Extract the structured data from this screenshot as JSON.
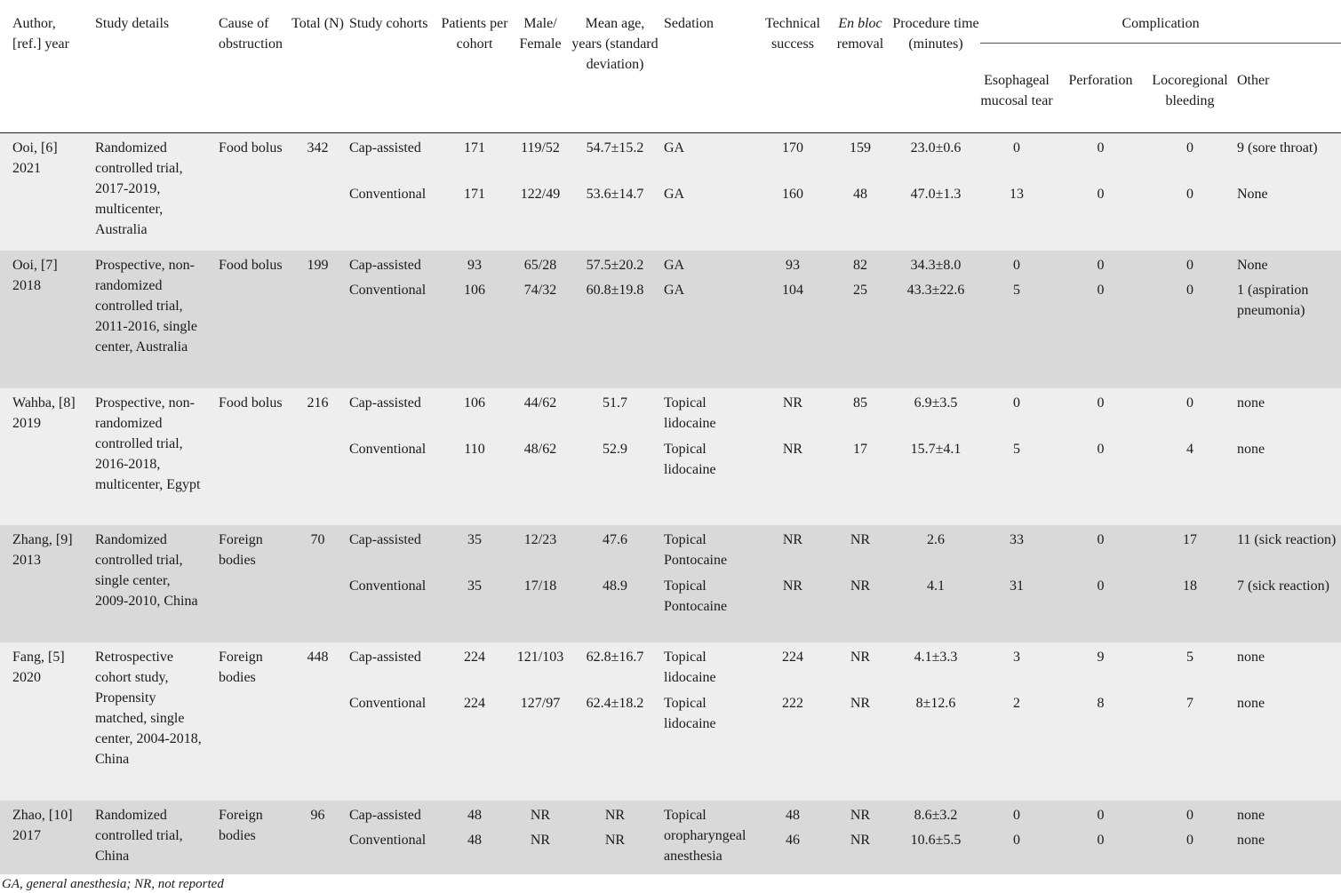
{
  "headers": {
    "author": "Author, [ref.] year",
    "study_details": "Study details",
    "cause": "Cause of obstruction",
    "total": "Total (N)",
    "cohorts": "Study cohorts",
    "patients": "Patients per cohort",
    "male_female": "Male/ Female",
    "mean_age": "Mean age, years (standard deviation)",
    "sedation": "Sedation",
    "technical": "Technical success",
    "en_bloc_em": "En bloc",
    "en_bloc_rest": "removal",
    "procedure_time": "Procedure time (minutes)",
    "complication": "Complication",
    "tear": "Esophageal mucosal tear",
    "perforation": "Perforation",
    "bleeding": "Locoregional bleeding",
    "other": "Other"
  },
  "studies": [
    {
      "author": "Ooi, [6] 2021",
      "details": "Randomized controlled trial, 2017-2019, multicenter, Australia",
      "cause": "Food bolus",
      "total": "342",
      "cohorts": [
        {
          "name": "Cap-assisted",
          "patients": "171",
          "mf": "119/52",
          "age": "54.7±15.2",
          "sedation": "GA",
          "technical": "170",
          "enbloc": "159",
          "time": "23.0±0.6",
          "tear": "0",
          "perf": "0",
          "bleed": "0",
          "other": "9 (sore throat)"
        },
        {
          "name": "Conventional",
          "patients": "171",
          "mf": "122/49",
          "age": "53.6±14.7",
          "sedation": "GA",
          "technical": "160",
          "enbloc": "48",
          "time": "47.0±1.3",
          "tear": "13",
          "perf": "0",
          "bleed": "0",
          "other": "None"
        }
      ]
    },
    {
      "author": "Ooi, [7] 2018",
      "details": "Prospective, non-randomized controlled trial, 2011-2016, single center, Australia",
      "cause": "Food bolus",
      "total": "199",
      "cohorts": [
        {
          "name": "Cap-assisted",
          "patients": "93",
          "mf": "65/28",
          "age": "57.5±20.2",
          "sedation": "GA",
          "technical": "93",
          "enbloc": "82",
          "time": "34.3±8.0",
          "tear": "0",
          "perf": "0",
          "bleed": "0",
          "other": "None"
        },
        {
          "name": "Conventional",
          "patients": "106",
          "mf": "74/32",
          "age": "60.8±19.8",
          "sedation": "GA",
          "technical": "104",
          "enbloc": "25",
          "time": "43.3±22.6",
          "tear": "5",
          "perf": "0",
          "bleed": "0",
          "other": "1 (aspiration pneumonia)"
        }
      ]
    },
    {
      "author": "Wahba, [8] 2019",
      "details": "Prospective, non-randomized controlled trial, 2016-2018, multicenter, Egypt",
      "cause": "Food bolus",
      "total": "216",
      "cohorts": [
        {
          "name": "Cap-assisted",
          "patients": "106",
          "mf": "44/62",
          "age": "51.7",
          "sedation": "Topical lidocaine",
          "technical": "NR",
          "enbloc": "85",
          "time": "6.9±3.5",
          "tear": "0",
          "perf": "0",
          "bleed": "0",
          "other": "none"
        },
        {
          "name": "Conventional",
          "patients": "110",
          "mf": "48/62",
          "age": "52.9",
          "sedation": "Topical lidocaine",
          "technical": "NR",
          "enbloc": "17",
          "time": "15.7±4.1",
          "tear": "5",
          "perf": "0",
          "bleed": "4",
          "other": "none"
        }
      ]
    },
    {
      "author": "Zhang, [9] 2013",
      "details": "Randomized controlled trial, single center, 2009-2010, China",
      "cause": "Foreign bodies",
      "total": "70",
      "cohorts": [
        {
          "name": "Cap-assisted",
          "patients": "35",
          "mf": "12/23",
          "age": "47.6",
          "sedation": "Topical Pontocaine",
          "technical": "NR",
          "enbloc": "NR",
          "time": "2.6",
          "tear": "33",
          "perf": "0",
          "bleed": "17",
          "other": "11 (sick reaction)"
        },
        {
          "name": "Conventional",
          "patients": "35",
          "mf": "17/18",
          "age": "48.9",
          "sedation": "Topical Pontocaine",
          "technical": "NR",
          "enbloc": "NR",
          "time": "4.1",
          "tear": "31",
          "perf": "0",
          "bleed": "18",
          "other": "7 (sick reaction)"
        }
      ]
    },
    {
      "author": "Fang, [5] 2020",
      "details": "Retrospective cohort study, Propensity matched, single center, 2004-2018, China",
      "cause": "Foreign bodies",
      "total": "448",
      "cohorts": [
        {
          "name": "Cap-assisted",
          "patients": "224",
          "mf": "121/103",
          "age": "62.8±16.7",
          "sedation": "Topical lidocaine",
          "technical": "224",
          "enbloc": "NR",
          "time": "4.1±3.3",
          "tear": "3",
          "perf": "9",
          "bleed": "5",
          "other": "none"
        },
        {
          "name": "Conventional",
          "patients": "224",
          "mf": "127/97",
          "age": "62.4±18.2",
          "sedation": "Topical lidocaine",
          "technical": "222",
          "enbloc": "NR",
          "time": "8±12.6",
          "tear": "2",
          "perf": "8",
          "bleed": "7",
          "other": "none"
        }
      ]
    },
    {
      "author": "Zhao, [10] 2017",
      "details": "Randomized controlled trial, China",
      "cause": "Foreign bodies",
      "total": "96",
      "sedation": "Topical oropharyngeal anesthesia",
      "cohorts": [
        {
          "name": "Cap-assisted",
          "patients": "48",
          "mf": "NR",
          "age": "NR",
          "technical": "48",
          "enbloc": "NR",
          "time": "8.6±3.2",
          "tear": "0",
          "perf": "0",
          "bleed": "0",
          "other": "none"
        },
        {
          "name": "Conventional",
          "patients": "48",
          "mf": "NR",
          "age": "NR",
          "technical": "46",
          "enbloc": "NR",
          "time": "10.6±5.5",
          "tear": "0",
          "perf": "0",
          "bleed": "0",
          "other": "none"
        }
      ]
    }
  ],
  "footnote": "GA, general anesthesia; NR, not reported"
}
